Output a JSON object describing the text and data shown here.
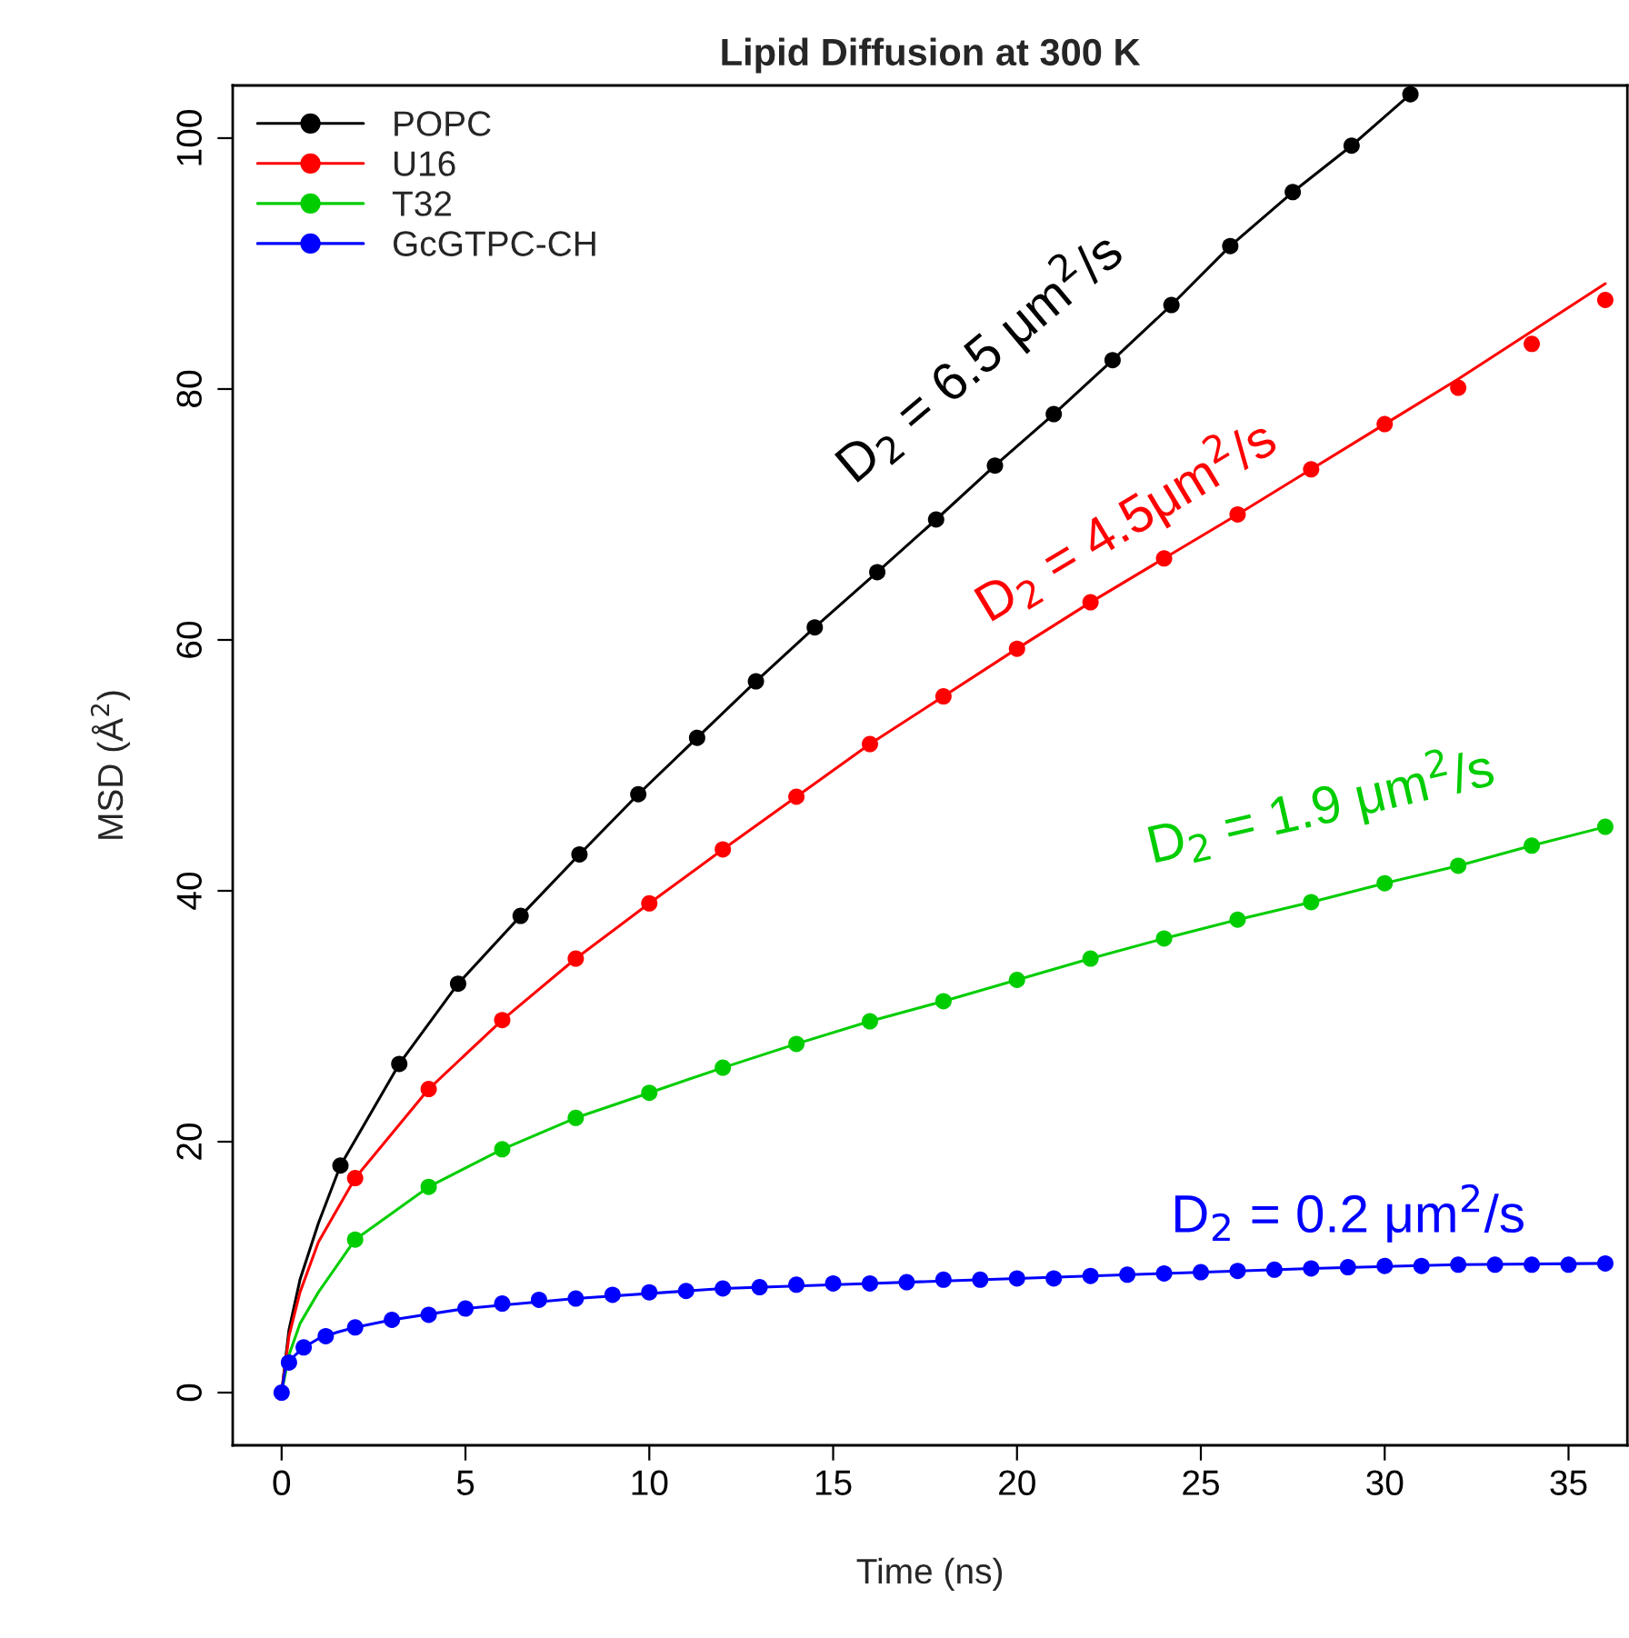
{
  "chart_data": {
    "type": "scatter",
    "title": "Lipid Diffusion at 300 K",
    "xlabel": "Time (ns)",
    "ylabel": "MSD (Å$^{2}$)",
    "xlim": [
      -1.33,
      36.6
    ],
    "ylim": [
      -4.2,
      104.2
    ],
    "xticks": [
      0,
      5,
      10,
      15,
      20,
      25,
      30,
      35
    ],
    "yticks": [
      0,
      20,
      40,
      60,
      80,
      100
    ],
    "grid": false,
    "legend": "top left",
    "series": [
      {
        "name": "POPC",
        "marker": "circle",
        "color": "#000000",
        "x": [
          1.6,
          3.2,
          4.8,
          6.5,
          8.1,
          9.7,
          11.3,
          12.9,
          14.5,
          16.2,
          17.8,
          19.4,
          21.0,
          22.6,
          24.2,
          25.8,
          27.5,
          29.1,
          30.7
        ],
        "values": [
          18.1,
          26.2,
          32.6,
          38.0,
          42.9,
          47.7,
          52.2,
          56.7,
          61.0,
          65.4,
          69.6,
          73.9,
          78.0,
          82.3,
          86.7,
          91.4,
          95.7,
          99.4,
          103.5
        ]
      },
      {
        "name": "U16",
        "marker": "circle",
        "color": "#ff0000",
        "x": [
          2,
          4,
          6,
          8,
          10,
          12,
          14,
          16,
          18,
          20,
          22,
          24,
          26,
          28,
          30,
          32,
          34,
          36
        ],
        "values": [
          17.1,
          24.2,
          29.7,
          34.6,
          39.0,
          43.3,
          47.5,
          51.7,
          55.5,
          59.3,
          63.0,
          66.5,
          70.0,
          73.6,
          77.2,
          80.1,
          83.6,
          87.1
        ]
      },
      {
        "name": "T32",
        "marker": "circle",
        "color": "#00cd00",
        "x": [
          2,
          4,
          6,
          8,
          10,
          12,
          14,
          16,
          18,
          20,
          22,
          24,
          26,
          28,
          30,
          32,
          34,
          36
        ],
        "values": [
          12.2,
          16.4,
          19.4,
          21.9,
          23.9,
          25.9,
          27.8,
          29.6,
          31.2,
          32.9,
          34.6,
          36.2,
          37.7,
          39.1,
          40.6,
          42.0,
          43.6,
          45.1
        ]
      },
      {
        "name": "GcGTPC-CH",
        "marker": "circle",
        "color": "#0000ff",
        "x": [
          0,
          0.2,
          0.6,
          1.2,
          2.0,
          3,
          4,
          5,
          6,
          7,
          8,
          9,
          10,
          11,
          12,
          13,
          14,
          15,
          16,
          17,
          18,
          19,
          20,
          21,
          22,
          23,
          24,
          25,
          26,
          27,
          28,
          29,
          30,
          31,
          32,
          33,
          34,
          35,
          36
        ],
        "values": [
          0,
          2.4,
          3.6,
          4.5,
          5.2,
          5.8,
          6.2,
          6.7,
          7.1,
          7.4,
          7.5,
          7.8,
          8.0,
          8.1,
          8.3,
          8.4,
          8.6,
          8.7,
          8.7,
          8.8,
          9.0,
          9.0,
          9.1,
          9.1,
          9.3,
          9.4,
          9.5,
          9.6,
          9.7,
          9.8,
          9.9,
          10.0,
          10.1,
          10.1,
          10.2,
          10.2,
          10.2,
          10.2,
          10.3
        ]
      },
      {
        "type": "line",
        "color": "#000000",
        "x": [
          0,
          0.2,
          0.5,
          1,
          1.6,
          3.2,
          4.8,
          6.5,
          8.1,
          9.7,
          11.3,
          12.9,
          14.5,
          16.2,
          17.8,
          19.4,
          21.0,
          22.6,
          24.2,
          25.8,
          27.5,
          29.1,
          30.7
        ],
        "values": [
          0,
          5,
          9,
          13.5,
          18.1,
          26.2,
          32.6,
          38.0,
          42.9,
          47.7,
          52.2,
          56.7,
          61.0,
          65.4,
          69.6,
          73.9,
          78.0,
          82.3,
          86.7,
          91.4,
          95.7,
          99.4,
          103.5
        ]
      },
      {
        "type": "line",
        "color": "#ff0000",
        "x": [
          0,
          0.2,
          0.5,
          1,
          2,
          4,
          6,
          8,
          10,
          12,
          14,
          16,
          18,
          20,
          22,
          24,
          26,
          28,
          30,
          32,
          34,
          36
        ],
        "values": [
          0,
          4.5,
          8,
          12,
          17.1,
          24.2,
          29.7,
          34.6,
          39.0,
          43.3,
          47.5,
          51.7,
          55.5,
          59.3,
          63.0,
          66.5,
          70.0,
          73.6,
          77.2,
          80.8,
          84.6,
          88.4
        ]
      },
      {
        "type": "line",
        "color": "#00cd00",
        "x": [
          0,
          0.2,
          0.5,
          1,
          2,
          4,
          6,
          8,
          10,
          12,
          14,
          16,
          18,
          20,
          22,
          24,
          26,
          28,
          30,
          32,
          34,
          36
        ],
        "values": [
          0,
          3,
          5.5,
          8,
          12.2,
          16.4,
          19.4,
          21.9,
          23.9,
          25.9,
          27.8,
          29.6,
          31.2,
          32.9,
          34.6,
          36.2,
          37.7,
          39.1,
          40.6,
          42.0,
          43.6,
          45.1
        ]
      },
      {
        "type": "line",
        "color": "#0000ff",
        "x": [
          0,
          0.1,
          0.3,
          0.6,
          1,
          1.5,
          2,
          3,
          5,
          8,
          12,
          16,
          20,
          24,
          28,
          32,
          36
        ],
        "values": [
          0,
          1.9,
          2.8,
          3.6,
          4.3,
          4.8,
          5.2,
          5.8,
          6.7,
          7.5,
          8.3,
          8.7,
          9.1,
          9.5,
          9.9,
          10.2,
          10.3
        ]
      }
    ],
    "annotations": [
      "D$_{2}$ = 6.5 μm$^{2}$/s",
      "D$_{2}$ = 4.5μm$^{2}$/s",
      "D$_{2}$ = 1.9 μm$^{2}$/s",
      "D$_{2}$ = 0.2 μm$^{2}$/s"
    ]
  }
}
